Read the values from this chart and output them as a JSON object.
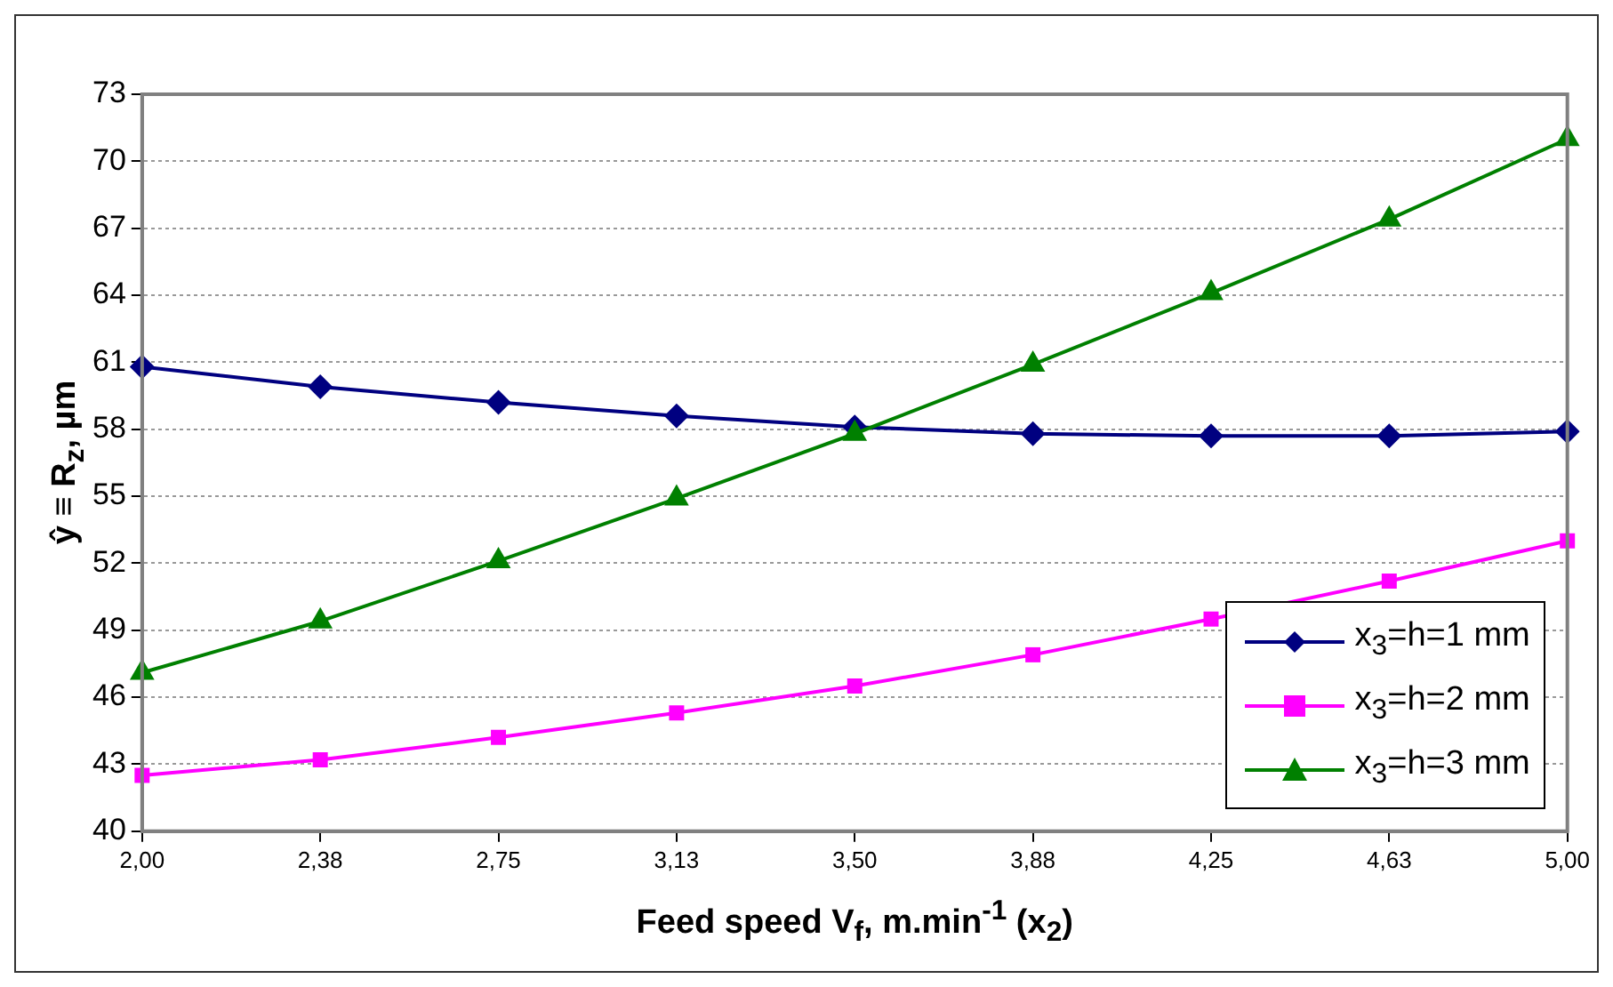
{
  "chart_data": {
    "type": "line",
    "xlabel": "Feed speed V$_{f}$, m.min$^{-1}$ (x$_{2}$)",
    "ylabel": "ŷ ≡ R$_{z}$, µm",
    "categories": [
      "2,00",
      "2,38",
      "2,75",
      "3,13",
      "3,50",
      "3,88",
      "4,25",
      "4,63",
      "5,00"
    ],
    "series": [
      {
        "name": "x$_{3}$=h=1 mm",
        "color": "#000080",
        "marker": "diamond",
        "values": [
          60.8,
          59.9,
          59.2,
          58.6,
          58.1,
          57.8,
          57.7,
          57.7,
          57.9
        ]
      },
      {
        "name": "x$_{3}$=h=2 mm",
        "color": "#ff00ff",
        "marker": "square",
        "values": [
          42.5,
          43.2,
          44.2,
          45.3,
          46.5,
          47.9,
          49.5,
          51.2,
          53.0
        ]
      },
      {
        "name": "x$_{3}$=h=3 mm",
        "color": "#008000",
        "marker": "triangle",
        "values": [
          47.1,
          49.4,
          52.1,
          54.9,
          57.8,
          60.9,
          64.1,
          67.4,
          71.0
        ]
      }
    ],
    "ylim": [
      40,
      73
    ],
    "yticks": [
      40,
      43,
      46,
      49,
      52,
      55,
      58,
      61,
      64,
      67,
      70,
      73
    ],
    "grid": "y",
    "legend": "bottom right",
    "line_style": "solid"
  }
}
